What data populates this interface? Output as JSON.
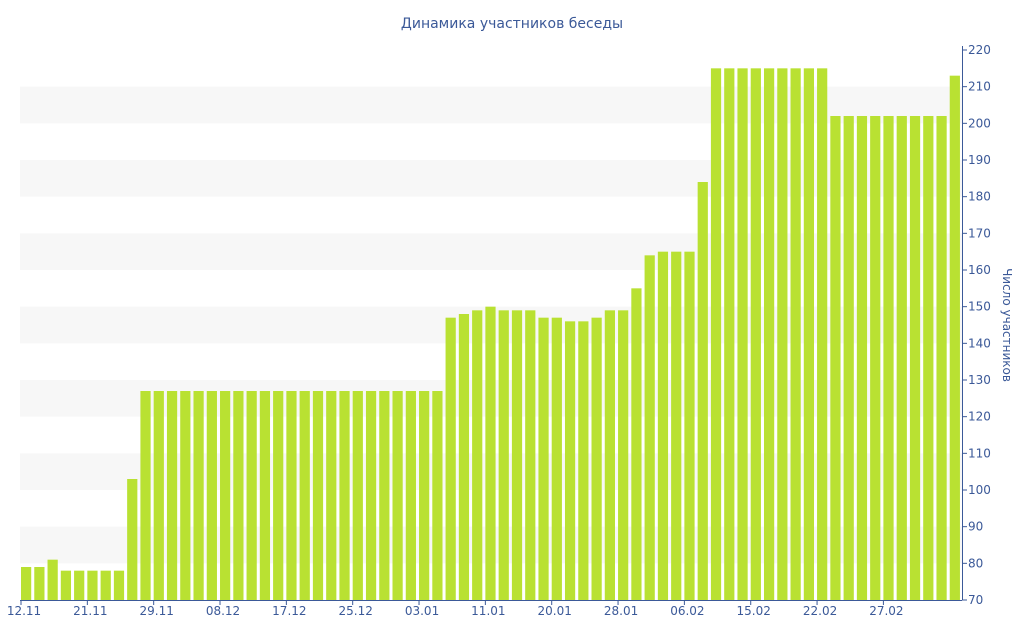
{
  "chart_data": {
    "type": "bar",
    "title": "Динамика участников беседы",
    "ylabel": "Число участников",
    "xlabel": "",
    "ylim": [
      70,
      220
    ],
    "y_ticks": [
      70,
      80,
      90,
      100,
      110,
      120,
      130,
      140,
      150,
      160,
      170,
      180,
      190,
      200,
      210,
      220
    ],
    "x_tick_labels": [
      {
        "label": "12.11",
        "index": 0
      },
      {
        "label": "21.11",
        "index": 5
      },
      {
        "label": "29.11",
        "index": 10
      },
      {
        "label": "08.12",
        "index": 15
      },
      {
        "label": "17.12",
        "index": 20
      },
      {
        "label": "25.12",
        "index": 25
      },
      {
        "label": "03.01",
        "index": 30
      },
      {
        "label": "11.01",
        "index": 35
      },
      {
        "label": "20.01",
        "index": 40
      },
      {
        "label": "28.01",
        "index": 45
      },
      {
        "label": "06.02",
        "index": 50
      },
      {
        "label": "15.02",
        "index": 55
      },
      {
        "label": "22.02",
        "index": 60
      },
      {
        "label": "27.02",
        "index": 65
      }
    ],
    "values": [
      79,
      79,
      81,
      78,
      78,
      78,
      78,
      78,
      103,
      127,
      127,
      127,
      127,
      127,
      127,
      127,
      127,
      127,
      127,
      127,
      127,
      127,
      127,
      127,
      127,
      127,
      127,
      127,
      127,
      127,
      127,
      127,
      147,
      148,
      149,
      150,
      149,
      149,
      149,
      147,
      147,
      146,
      146,
      147,
      149,
      149,
      155,
      164,
      165,
      165,
      165,
      184,
      215,
      215,
      215,
      215,
      215,
      215,
      215,
      215,
      215,
      202,
      202,
      202,
      202,
      202,
      202,
      202,
      202,
      202,
      213
    ],
    "bar_color": "#b9e132",
    "band_color": "#f7f7f7",
    "text_color": "#3b5998",
    "grid": "alternating-bands",
    "y_axis_position": "right"
  }
}
